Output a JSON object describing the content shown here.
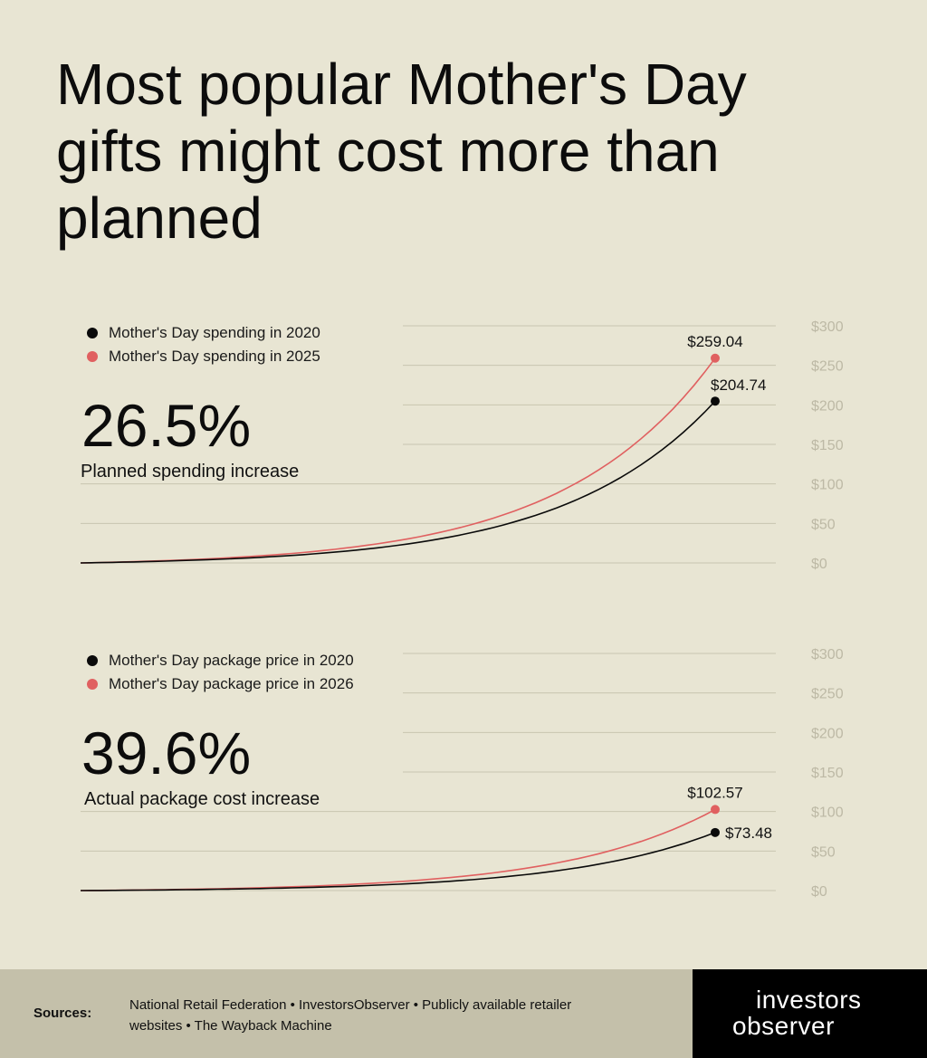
{
  "title": "Most popular Mother's Day gifts might cost more than planned",
  "charts": [
    {
      "legend": [
        {
          "label": "Mother's Day spending in 2020",
          "color": "#0a0a0a"
        },
        {
          "label": "Mother's Day spending in 2025",
          "color": "#e06060"
        }
      ],
      "big_number": "26.5%",
      "subtitle": "Planned spending increase"
    },
    {
      "legend": [
        {
          "label": "Mother's Day package price in 2020",
          "color": "#0a0a0a"
        },
        {
          "label": "Mother's Day package price in 2026",
          "color": "#e06060"
        }
      ],
      "big_number": "39.6%",
      "subtitle": "Actual package cost increase"
    }
  ],
  "chart_data": [
    {
      "type": "line",
      "ylim": [
        0,
        300
      ],
      "y_ticks": [
        "$300",
        "$250",
        "$200",
        "$150",
        "$100",
        "$50",
        "$0"
      ],
      "grid": true,
      "legend_position": "top-left",
      "series": [
        {
          "name": "Mother's Day spending in 2020",
          "end_value": 204.74,
          "end_label": "$204.74",
          "color": "#0a0a0a"
        },
        {
          "name": "Mother's Day spending in 2025",
          "end_value": 259.04,
          "end_label": "$259.04",
          "color": "#e06060"
        }
      ]
    },
    {
      "type": "line",
      "ylim": [
        0,
        300
      ],
      "y_ticks": [
        "$300",
        "$250",
        "$200",
        "$150",
        "$100",
        "$50",
        "$0"
      ],
      "grid": true,
      "legend_position": "top-left",
      "series": [
        {
          "name": "Mother's Day package price in 2020",
          "end_value": 73.48,
          "end_label": "$73.48",
          "color": "#0a0a0a"
        },
        {
          "name": "Mother's Day package price in 2026",
          "end_value": 102.57,
          "end_label": "$102.57",
          "color": "#e06060"
        }
      ]
    }
  ],
  "footer": {
    "sources_label": "Sources:",
    "sources_text": "National Retail Federation  •  InvestorsObserver  •  Publicly available retailer websites  •  The Wayback Machine",
    "logo_line1": "investors",
    "logo_line2": "observer"
  }
}
